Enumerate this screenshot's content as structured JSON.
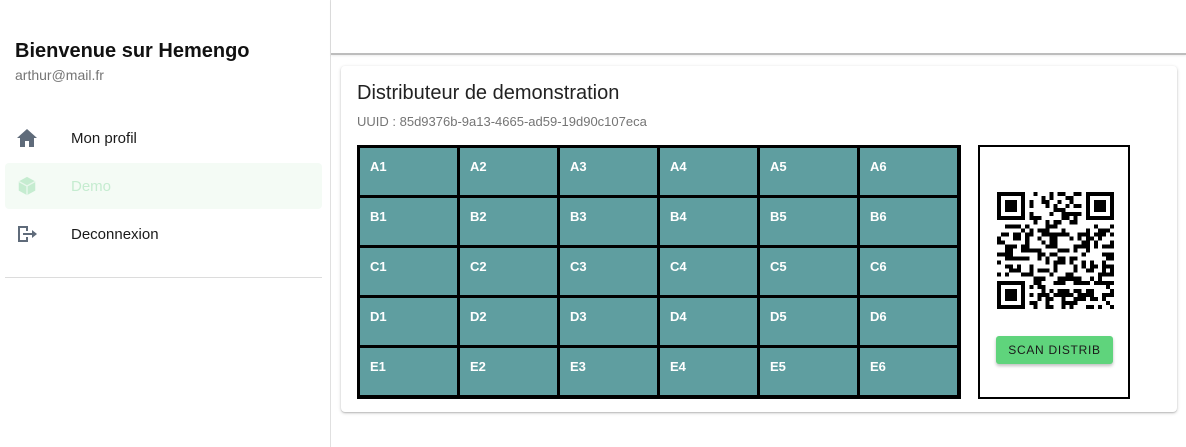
{
  "sidebar": {
    "title": "Bienvenue sur Hemengo",
    "email": "arthur@mail.fr",
    "items": [
      {
        "label": "Mon profil",
        "icon": "home-icon"
      },
      {
        "label": "Demo",
        "icon": "cube-icon",
        "active": true
      },
      {
        "label": "Deconnexion",
        "icon": "logout-icon"
      }
    ]
  },
  "distributor": {
    "title": "Distributeur de demonstration",
    "uuid": "UUID : 85d9376b-9a13-4665-ad59-19d90c107eca",
    "slots": [
      [
        "A1",
        "A2",
        "A3",
        "A4",
        "A5",
        "A6"
      ],
      [
        "B1",
        "B2",
        "B3",
        "B4",
        "B5",
        "B6"
      ],
      [
        "C1",
        "C2",
        "C3",
        "C4",
        "C5",
        "C6"
      ],
      [
        "D1",
        "D2",
        "D3",
        "D4",
        "D5",
        "D6"
      ],
      [
        "E1",
        "E2",
        "E3",
        "E4",
        "E5",
        "E6"
      ]
    ],
    "scan_label": "SCAN DISTRIB"
  },
  "colors": {
    "slot": "#5f9ea0",
    "scan_button": "#5fd47c",
    "active_nav_bg": "#f4fbf5"
  }
}
